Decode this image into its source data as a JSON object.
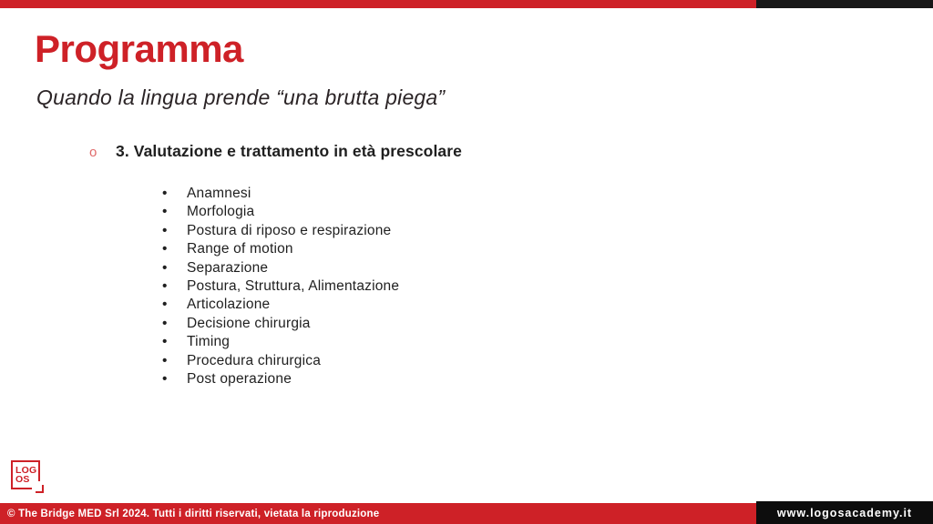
{
  "slide": {
    "title": "Programma",
    "subtitle": "Quando la lingua prende “una brutta piega”",
    "section": {
      "bullet_marker": "o",
      "heading": "3. Valutazione e trattamento in età prescolare",
      "items": [
        "Anamnesi",
        "Morfologia",
        "Postura di riposo e respirazione",
        "Range of motion",
        "Separazione",
        "Postura, Struttura, Alimentazione",
        "Articolazione",
        "Decisione chirurgia",
        "Timing",
        "Procedura chirurgica",
        "Post operazione"
      ]
    }
  },
  "logo": {
    "line1": "LOG",
    "line2": "OS"
  },
  "footer": {
    "copyright": "© The Bridge MED Srl 2024. Tutti i diritti riservati, vietata la riproduzione",
    "website": "www.logosacademy.it"
  },
  "colors": {
    "accent_red": "#ce2127",
    "bar_black": "#181818",
    "text_dark": "#1f1f1f",
    "bullet_salmon": "#e06a6a",
    "footer_text": "#ffffff"
  }
}
